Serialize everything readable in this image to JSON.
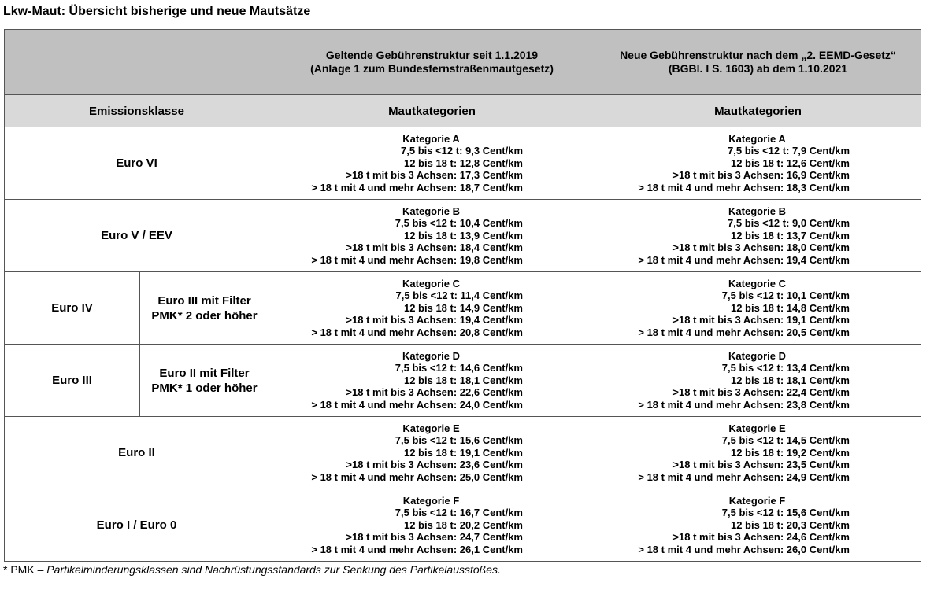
{
  "title": "Lkw-Maut: Übersicht bisherige und neue Mautsätze",
  "header": {
    "old_structure": [
      "Geltende Gebührenstruktur seit 1.1.2019",
      "(Anlage 1 zum Bundesfernstraßenmautgesetz)"
    ],
    "new_structure": [
      "Neue Gebührenstruktur nach dem „2. EEMD-Gesetz“",
      "(BGBl. I S. 1603) ab dem 1.10.2021"
    ],
    "emission_class_label": "Emissionsklasse",
    "toll_categories_label_old": "Mautkategorien",
    "toll_categories_label_new": "Mautkategorien"
  },
  "rows": [
    {
      "emission_class": "Euro VI",
      "old": {
        "category": "Kategorie A",
        "rates": [
          "7,5 bis <12 t: 9,3 Cent/km",
          "12 bis 18 t: 12,8 Cent/km",
          ">18 t mit bis 3 Achsen: 17,3 Cent/km",
          "> 18 t mit 4 und mehr Achsen: 18,7 Cent/km"
        ]
      },
      "new": {
        "category": "Kategorie A",
        "rates": [
          "7,5 bis <12 t: 7,9 Cent/km",
          "12 bis 18 t: 12,6 Cent/km",
          ">18 t mit bis 3 Achsen: 16,9 Cent/km",
          "> 18 t mit 4 und mehr Achsen: 18,3 Cent/km"
        ]
      }
    },
    {
      "emission_class": "Euro V / EEV",
      "old": {
        "category": "Kategorie B",
        "rates": [
          "7,5 bis <12 t: 10,4 Cent/km",
          "12 bis 18 t: 13,9 Cent/km",
          ">18 t mit bis 3 Achsen: 18,4 Cent/km",
          "> 18 t mit 4 und mehr Achsen: 19,8 Cent/km"
        ]
      },
      "new": {
        "category": "Kategorie B",
        "rates": [
          "7,5 bis <12 t: 9,0 Cent/km",
          "12 bis 18 t: 13,7 Cent/km",
          ">18 t mit bis 3 Achsen: 18,0 Cent/km",
          "> 18 t mit 4 und mehr Achsen: 19,4 Cent/km"
        ]
      }
    },
    {
      "emission_class": "Euro IV",
      "sub_class": [
        "Euro III mit Filter",
        "PMK* 2 oder höher"
      ],
      "old": {
        "category": "Kategorie C",
        "rates": [
          "7,5 bis <12 t: 11,4 Cent/km",
          "12 bis 18 t: 14,9 Cent/km",
          ">18 t mit bis 3 Achsen: 19,4 Cent/km",
          "> 18 t mit 4 und mehr Achsen: 20,8 Cent/km"
        ]
      },
      "new": {
        "category": "Kategorie C",
        "rates": [
          "7,5 bis <12 t: 10,1 Cent/km",
          "12 bis 18 t: 14,8 Cent/km",
          ">18 t mit bis 3 Achsen: 19,1 Cent/km",
          "> 18 t mit 4 und mehr Achsen: 20,5 Cent/km"
        ]
      }
    },
    {
      "emission_class": "Euro III",
      "sub_class": [
        "Euro II mit Filter",
        "PMK* 1 oder höher"
      ],
      "old": {
        "category": "Kategorie D",
        "rates": [
          "7,5 bis <12 t: 14,6 Cent/km",
          "12 bis 18 t: 18,1 Cent/km",
          ">18 t mit bis 3 Achsen: 22,6 Cent/km",
          "> 18 t mit 4 und mehr Achsen: 24,0 Cent/km"
        ]
      },
      "new": {
        "category": "Kategorie D",
        "rates": [
          "7,5 bis <12 t: 13,4 Cent/km",
          "12 bis 18 t: 18,1 Cent/km",
          ">18 t mit bis 3 Achsen: 22,4 Cent/km",
          "> 18 t mit 4 und mehr Achsen: 23,8 Cent/km"
        ]
      }
    },
    {
      "emission_class": "Euro II",
      "old": {
        "category": "Kategorie E",
        "rates": [
          "7,5 bis <12 t: 15,6 Cent/km",
          "12 bis 18 t: 19,1 Cent/km",
          ">18 t mit bis 3 Achsen: 23,6 Cent/km",
          "> 18 t mit 4 und mehr Achsen: 25,0 Cent/km"
        ]
      },
      "new": {
        "category": "Kategorie E",
        "rates": [
          "7,5 bis <12 t: 14,5 Cent/km",
          "12 bis 18 t: 19,2 Cent/km",
          ">18 t mit bis 3 Achsen: 23,5 Cent/km",
          "> 18 t mit 4 und mehr Achsen: 24,9 Cent/km"
        ]
      }
    },
    {
      "emission_class": "Euro I / Euro 0",
      "old": {
        "category": "Kategorie F",
        "rates": [
          "7,5 bis <12 t: 16,7 Cent/km",
          "12 bis 18 t: 20,2 Cent/km",
          ">18 t mit bis 3 Achsen: 24,7 Cent/km",
          "> 18 t mit 4 und mehr Achsen: 26,1 Cent/km"
        ]
      },
      "new": {
        "category": "Kategorie F",
        "rates": [
          "7,5 bis <12 t: 15,6 Cent/km",
          "12 bis 18 t: 20,3 Cent/km",
          ">18 t mit bis 3 Achsen: 24,6 Cent/km",
          "> 18 t mit 4 und mehr Achsen: 26,0 Cent/km"
        ]
      }
    }
  ],
  "footnote": {
    "term": "* PMK – ",
    "definition": "Partikelminderungsklassen sind Nachrüstungsstandards zur Senkung des Partikelausstoßes."
  }
}
